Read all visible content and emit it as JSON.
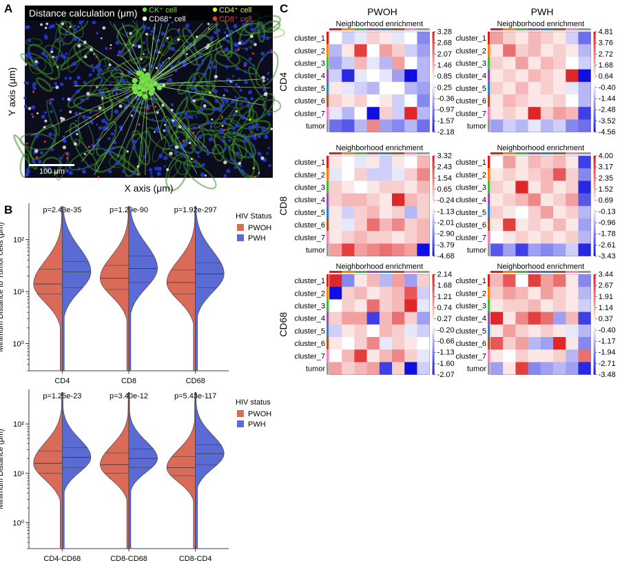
{
  "colors": {
    "pwoh": "#d96b58",
    "pwh": "#5a6bd4",
    "ck": "#7be04a",
    "cd4": "#f2e836",
    "cd68": "#ffffff",
    "cd8": "#e83a3a"
  },
  "panelA": {
    "letter": "A",
    "title": "Distance calculation (μm)",
    "legend": [
      {
        "label": "CK⁺ cell",
        "color": "#7be04a"
      },
      {
        "label": "CD4⁺ cell",
        "color": "#f2e836"
      },
      {
        "label": "CD68⁺ cell",
        "color": "#ffffff"
      },
      {
        "label": "CD8⁺ cell",
        "color": "#e83a3a"
      }
    ],
    "scalebar": "100 μm",
    "xlabel": "X axis (μm)",
    "ylabel": "Y axis (μm)"
  },
  "chart_data": [
    {
      "type": "violin",
      "panel": "B",
      "letter": "B",
      "ylabel": "Minimum Distance to Tumor cells (μm)",
      "legend_title": "HIV Status",
      "legend": [
        "PWOH",
        "PWH"
      ],
      "yscale": "log",
      "ylim": [
        0.3,
        500
      ],
      "yticks": [
        "10⁰",
        "10¹",
        "10²"
      ],
      "categories": [
        "CD4",
        "CD8",
        "CD68"
      ],
      "pvalues": [
        "p=2.43e-35",
        "p=1.29e-90",
        "p=1.92e-297"
      ],
      "series": [
        {
          "name": "PWOH",
          "median": [
            14,
            18,
            15
          ],
          "q1": [
            9,
            11,
            9
          ],
          "q3": [
            27,
            32,
            26
          ]
        },
        {
          "name": "PWH",
          "median": [
            24,
            28,
            22
          ],
          "q1": [
            12,
            15,
            12
          ],
          "q3": [
            38,
            48,
            36
          ]
        }
      ]
    },
    {
      "type": "violin",
      "panel": "B2",
      "ylabel": "Minimum Distance (μm)",
      "legend_title": "HIV status",
      "legend": [
        "PWOH",
        "PWH"
      ],
      "yscale": "log",
      "ylim": [
        0.3,
        500
      ],
      "yticks": [
        "10⁰",
        "10¹",
        "10²"
      ],
      "categories": [
        "CD4-CD68",
        "CD8-CD68",
        "CD8-CD4"
      ],
      "pvalues": [
        "p=1.25e-23",
        "p=3.40e-12",
        "p=5.43e-117"
      ],
      "series": [
        {
          "name": "PWOH",
          "median": [
            16,
            15,
            13
          ],
          "q1": [
            10,
            10,
            9
          ],
          "q3": [
            28,
            26,
            22
          ]
        },
        {
          "name": "PWH",
          "median": [
            21,
            20,
            25
          ],
          "q1": [
            13,
            13,
            15
          ],
          "q3": [
            33,
            31,
            38
          ]
        }
      ]
    },
    {
      "type": "heatmap",
      "panel": "C",
      "letter": "C",
      "columns": [
        "PWOH",
        "PWH"
      ],
      "row_groups": [
        "CD4",
        "CD8",
        "CD68"
      ],
      "map_title": "Neighborhood enrichment",
      "row_labels": [
        "cluster_1",
        "cluster_2",
        "cluster_3",
        "cluster_4",
        "cluster_5",
        "cluster_6",
        "cluster_7",
        "tumor"
      ],
      "row_label_colors": [
        "#e41a1c",
        "#ff7f00",
        "#4daf4a",
        "#984ea3",
        "#377eb8",
        "#a65628",
        "#f781bf",
        "#999999"
      ],
      "maps": [
        {
          "group": "CD4",
          "status": "PWOH",
          "ticks": [
            "3.28",
            "2.68",
            "2.07",
            "1.46",
            "0.85",
            "0.25",
            "-0.36",
            "-0.97",
            "-1.57",
            "-2.18"
          ],
          "values": [
            [
              0.0,
              -0.2,
              -0.1,
              0.2,
              0.1,
              -0.1,
              0.0,
              -0.5
            ],
            [
              -0.3,
              0.1,
              0.8,
              0.0,
              0.4,
              0.2,
              -0.2,
              -0.4
            ],
            [
              -0.4,
              -0.2,
              0.3,
              -0.1,
              -0.3,
              0.4,
              0.0,
              -0.3
            ],
            [
              -0.2,
              -0.9,
              -0.1,
              0.0,
              -0.1,
              -0.4,
              -1.0,
              -0.3
            ],
            [
              0.1,
              -0.1,
              -0.2,
              -0.3,
              0.0,
              0.0,
              -0.3,
              -0.4
            ],
            [
              0.2,
              0.1,
              0.2,
              0.0,
              0.1,
              -0.2,
              0.0,
              -0.5
            ],
            [
              -0.1,
              -0.3,
              0.0,
              -1.0,
              0.2,
              -0.2,
              0.9,
              -0.3
            ],
            [
              -0.6,
              -0.7,
              -0.3,
              0.5,
              -0.4,
              -0.5,
              -0.3,
              -0.6
            ]
          ]
        },
        {
          "group": "CD4",
          "status": "PWH",
          "ticks": [
            "4.81",
            "3.76",
            "2.72",
            "1.68",
            "0.64",
            "-0.40",
            "-1.44",
            "-2.48",
            "-3.52",
            "-4.56"
          ],
          "values": [
            [
              0.4,
              0.2,
              0.1,
              0.3,
              0.2,
              0.1,
              -0.2,
              -0.6
            ],
            [
              0.1,
              0.6,
              0.2,
              0.3,
              0.1,
              0.2,
              0.1,
              -0.3
            ],
            [
              0.2,
              0.1,
              0.4,
              0.1,
              0.3,
              0.2,
              0.0,
              -0.2
            ],
            [
              0.1,
              0.2,
              0.1,
              0.3,
              0.2,
              0.1,
              0.9,
              -1.0
            ],
            [
              0.2,
              0.1,
              0.3,
              0.1,
              0.2,
              0.1,
              -0.1,
              -0.3
            ],
            [
              0.1,
              0.3,
              0.2,
              0.1,
              0.1,
              0.2,
              0.0,
              -0.3
            ],
            [
              0.1,
              0.2,
              0.1,
              0.9,
              0.2,
              0.4,
              0.3,
              -0.8
            ],
            [
              -0.4,
              -0.2,
              -0.3,
              -0.1,
              -0.3,
              -0.2,
              -0.5,
              -0.6
            ]
          ]
        },
        {
          "group": "CD8",
          "status": "PWOH",
          "ticks": [
            "3.32",
            "2.43",
            "1.54",
            "0.65",
            "-0.24",
            "-1.13",
            "-2.01",
            "-2.90",
            "-3.79",
            "-4.68"
          ],
          "values": [
            [
              0.1,
              0.0,
              -0.1,
              0.1,
              -0.2,
              0.1,
              0.0,
              0.3
            ],
            [
              -0.1,
              0.0,
              0.2,
              -0.2,
              -0.2,
              -0.1,
              0.2,
              0.5
            ],
            [
              0.2,
              0.1,
              0.0,
              0.1,
              0.2,
              0.2,
              0.1,
              0.3
            ],
            [
              0.2,
              0.3,
              0.3,
              0.2,
              0.1,
              0.9,
              0.3,
              0.2
            ],
            [
              0.1,
              -0.2,
              0.2,
              0.3,
              0.1,
              0.2,
              -0.3,
              0.2
            ],
            [
              0.1,
              -0.1,
              0.2,
              0.6,
              0.3,
              0.5,
              0.2,
              0.3
            ],
            [
              0.1,
              0.2,
              0.3,
              0.2,
              0.2,
              0.1,
              0.2,
              0.3
            ],
            [
              0.4,
              0.8,
              0.4,
              0.5,
              0.6,
              0.5,
              0.4,
              -1.0
            ]
          ]
        },
        {
          "group": "CD8",
          "status": "PWH",
          "ticks": [
            "4.00",
            "3.17",
            "2.35",
            "1.52",
            "0.69",
            "-0.13",
            "-0.96",
            "-1.78",
            "-2.61",
            "-3.43"
          ],
          "values": [
            [
              0.0,
              0.4,
              0.1,
              0.3,
              0.2,
              0.3,
              0.1,
              -0.8
            ],
            [
              0.1,
              0.2,
              0.1,
              0.2,
              0.3,
              0.7,
              0.2,
              -0.5
            ],
            [
              0.2,
              0.1,
              0.9,
              0.1,
              0.3,
              0.1,
              0.2,
              -0.9
            ],
            [
              0.1,
              0.2,
              0.3,
              0.5,
              0.1,
              0.2,
              0.4,
              -0.7
            ],
            [
              0.2,
              0.1,
              0.0,
              0.2,
              0.4,
              0.1,
              0.2,
              -0.3
            ],
            [
              0.1,
              0.8,
              0.1,
              0.2,
              0.1,
              0.3,
              0.1,
              -0.4
            ],
            [
              0.0,
              0.1,
              0.2,
              0.1,
              0.2,
              0.1,
              0.2,
              -0.3
            ],
            [
              -0.7,
              -0.4,
              -0.8,
              -0.4,
              -0.5,
              -0.4,
              -0.2,
              -0.9
            ]
          ]
        },
        {
          "group": "CD68",
          "status": "PWOH",
          "ticks": [
            "2.14",
            "1.68",
            "1.21",
            "0.74",
            "0.27",
            "-0.20",
            "-0.66",
            "-1.13",
            "-1.60",
            "-2.07"
          ],
          "values": [
            [
              0.9,
              -0.5,
              0.1,
              0.3,
              -0.3,
              0.4,
              -0.4,
              0.2
            ],
            [
              -1.0,
              0.2,
              0.3,
              0.1,
              0.2,
              0.3,
              0.7,
              -0.2
            ],
            [
              0.0,
              0.2,
              0.1,
              0.6,
              0.2,
              0.3,
              0.9,
              -0.1
            ],
            [
              0.2,
              0.4,
              0.4,
              -0.8,
              0.3,
              0.6,
              0.2,
              -0.4
            ],
            [
              -0.2,
              0.1,
              0.2,
              0.0,
              0.3,
              0.2,
              -0.1,
              -0.2
            ],
            [
              0.1,
              0.0,
              0.2,
              0.5,
              -0.1,
              0.2,
              0.1,
              0.0
            ],
            [
              0.0,
              0.3,
              0.8,
              0.1,
              0.3,
              0.5,
              0.2,
              -0.1
            ],
            [
              0.4,
              0.2,
              0.3,
              0.4,
              -0.8,
              0.2,
              -1.0,
              -0.2
            ]
          ]
        },
        {
          "group": "CD68",
          "status": "PWH",
          "ticks": [
            "3.44",
            "2.67",
            "1.91",
            "1.14",
            "0.37",
            "-0.40",
            "-1.17",
            "-1.94",
            "-2.71",
            "-3.48"
          ],
          "values": [
            [
              0.3,
              0.7,
              0.0,
              0.8,
              0.4,
              0.6,
              0.1,
              -0.5
            ],
            [
              0.2,
              0.4,
              0.3,
              0.1,
              0.4,
              0.2,
              0.1,
              -0.3
            ],
            [
              0.1,
              0.2,
              0.2,
              0.3,
              0.1,
              0.2,
              0.1,
              -0.2
            ],
            [
              0.9,
              0.1,
              0.5,
              0.8,
              0.6,
              -0.4,
              0.3,
              -0.8
            ],
            [
              0.1,
              0.4,
              0.2,
              0.1,
              0.2,
              0.1,
              -0.1,
              -0.3
            ],
            [
              0.7,
              0.2,
              0.4,
              -0.3,
              -0.4,
              0.9,
              0.1,
              -0.5
            ],
            [
              0.1,
              0.0,
              0.2,
              0.1,
              0.1,
              0.2,
              -0.3,
              0.6
            ],
            [
              -0.4,
              0.1,
              0.8,
              -0.5,
              -0.4,
              -0.3,
              -0.4,
              -0.9
            ]
          ]
        }
      ]
    }
  ]
}
